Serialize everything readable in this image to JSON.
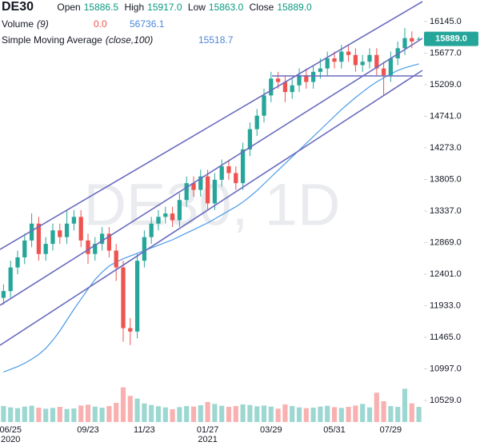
{
  "chart_data": {
    "type": "candlestick",
    "title": "DE30",
    "watermark": "DE30, 1D",
    "header": {
      "open_label": "Open",
      "open": "15886.5",
      "high_label": "High",
      "high": "15917.0",
      "low_label": "Low",
      "low": "15863.0",
      "close_label": "Close",
      "close": "15889.0"
    },
    "price_tag": "15889.0",
    "categories": [
      null,
      "06/25",
      null,
      null,
      null,
      null,
      null,
      null,
      null,
      null,
      null,
      null,
      "09/23",
      null,
      null,
      null,
      null,
      null,
      null,
      null,
      "11/23",
      null,
      null,
      null,
      null,
      null,
      null,
      null,
      null,
      "01/27",
      null,
      null,
      null,
      null,
      null,
      null,
      null,
      null,
      "03/29",
      null,
      null,
      null,
      null,
      null,
      null,
      null,
      null,
      "05/31",
      null,
      null,
      null,
      null,
      null,
      null,
      null,
      "07/29",
      null,
      null,
      null,
      null
    ],
    "category_years": [
      null,
      "2020",
      null,
      null,
      null,
      null,
      null,
      null,
      null,
      null,
      null,
      null,
      null,
      null,
      null,
      null,
      null,
      null,
      null,
      null,
      null,
      null,
      null,
      null,
      null,
      null,
      null,
      null,
      null,
      "2021",
      null,
      null,
      null,
      null,
      null,
      null,
      null,
      null,
      null,
      null,
      null,
      null,
      null,
      null,
      null,
      null,
      null,
      null,
      null,
      null,
      null,
      null,
      null,
      null,
      null,
      null,
      null,
      null,
      null,
      null
    ],
    "open": [
      12050,
      12150,
      12500,
      12650,
      12900,
      13150,
      12700,
      12850,
      13050,
      12950,
      13150,
      13250,
      12900,
      12700,
      12850,
      13000,
      12750,
      12500,
      11600,
      11550,
      12600,
      12950,
      13150,
      13250,
      13300,
      13200,
      13500,
      13750,
      13650,
      13850,
      13450,
      13800,
      14000,
      13900,
      13750,
      14250,
      14550,
      14750,
      15050,
      15300,
      15250,
      15100,
      15200,
      15350,
      15250,
      15400,
      15450,
      15600,
      15550,
      15700,
      15650,
      15500,
      15550,
      15650,
      15450,
      15350,
      15600,
      15750,
      15900,
      15886.5
    ],
    "high": [
      12250,
      12600,
      12750,
      13000,
      13300,
      13250,
      12950,
      13150,
      13150,
      13350,
      13350,
      13350,
      13000,
      12950,
      13100,
      13100,
      12850,
      12600,
      11750,
      12700,
      13050,
      13250,
      13350,
      13400,
      13400,
      13600,
      13850,
      13850,
      13950,
      13950,
      13900,
      14100,
      14100,
      14000,
      14350,
      14650,
      14850,
      15150,
      15400,
      15400,
      15350,
      15300,
      15450,
      15450,
      15500,
      15600,
      15700,
      15700,
      15800,
      15800,
      15750,
      15650,
      15750,
      15750,
      15550,
      15700,
      15850,
      16050,
      16000,
      15917
    ],
    "low": [
      11950,
      12050,
      12400,
      12550,
      12800,
      12600,
      12600,
      12750,
      12850,
      12850,
      13050,
      12800,
      12550,
      12600,
      12750,
      12650,
      12300,
      11400,
      11350,
      11450,
      12500,
      12850,
      13050,
      13150,
      13100,
      13100,
      13400,
      13550,
      13550,
      13350,
      13350,
      13700,
      13800,
      13650,
      13650,
      14150,
      14450,
      14650,
      14950,
      15150,
      14950,
      15000,
      15100,
      15150,
      15150,
      15300,
      15350,
      15450,
      15450,
      15550,
      15400,
      15400,
      15450,
      15350,
      15050,
      15250,
      15500,
      15650,
      15750,
      15863
    ],
    "close": [
      12150,
      12500,
      12650,
      12900,
      13150,
      12700,
      12850,
      13050,
      12950,
      13150,
      13250,
      12900,
      12700,
      12850,
      13000,
      12750,
      12500,
      11600,
      11550,
      12600,
      12950,
      13150,
      13250,
      13300,
      13200,
      13500,
      13750,
      13650,
      13850,
      13450,
      13800,
      14000,
      13900,
      13750,
      14250,
      14550,
      14750,
      15050,
      15300,
      15250,
      15100,
      15200,
      15350,
      15250,
      15400,
      15450,
      15600,
      15550,
      15700,
      15650,
      15500,
      15550,
      15650,
      15450,
      15350,
      15600,
      15750,
      15900,
      15850,
      15889
    ],
    "up_color": "#26a69a",
    "down_color": "#ef5350",
    "volume": {
      "label": "Volume",
      "param": "(9)",
      "ma_value": "0.0",
      "value": "56736.1",
      "values": [
        60000,
        55000,
        52000,
        58000,
        61000,
        54000,
        50000,
        53000,
        57000,
        49000,
        51000,
        62000,
        65000,
        58000,
        54000,
        60000,
        72000,
        130000,
        98000,
        88000,
        70000,
        64000,
        59000,
        55000,
        48000,
        56000,
        60000,
        58000,
        63000,
        75000,
        68000,
        61000,
        57000,
        60000,
        66000,
        64000,
        59000,
        62000,
        58000,
        50000,
        66000,
        60000,
        55000,
        52000,
        54000,
        58000,
        61000,
        56000,
        53000,
        57000,
        62000,
        68000,
        55000,
        110000,
        78000,
        60000,
        57000,
        125000,
        70000,
        56736.1
      ],
      "ylim": [
        0,
        150000
      ]
    },
    "sma": {
      "label": "Simple Moving Average",
      "param": "(close,100)",
      "value": "15518.7",
      "color": "#4a9be8",
      "values": [
        10950,
        10990,
        11030,
        11080,
        11140,
        11210,
        11300,
        11420,
        11560,
        11720,
        11880,
        12030,
        12180,
        12320,
        12430,
        12520,
        12580,
        12630,
        12670,
        12710,
        12750,
        12790,
        12830,
        12870,
        12910,
        12960,
        13010,
        13060,
        13110,
        13160,
        13220,
        13280,
        13340,
        13400,
        13470,
        13550,
        13640,
        13740,
        13840,
        13940,
        14040,
        14140,
        14240,
        14340,
        14440,
        14540,
        14640,
        14740,
        14840,
        14930,
        15020,
        15100,
        15180,
        15250,
        15310,
        15370,
        15420,
        15460,
        15490,
        15518.7
      ]
    },
    "ylim": [
      10185,
      16465
    ],
    "yticks": [
      {
        "value": 10529,
        "label": "10529.0"
      },
      {
        "value": 10997,
        "label": "10997.0"
      },
      {
        "value": 11465,
        "label": "11465.0"
      },
      {
        "value": 11933,
        "label": "11933.0"
      },
      {
        "value": 12401,
        "label": "12401.0"
      },
      {
        "value": 12869,
        "label": "12869.0"
      },
      {
        "value": 13337,
        "label": "13337.0"
      },
      {
        "value": 13805,
        "label": "13805.0"
      },
      {
        "value": 14273,
        "label": "14273.0"
      },
      {
        "value": 14741,
        "label": "14741.0"
      },
      {
        "value": 15209,
        "label": "15209.0"
      },
      {
        "value": 15677,
        "label": "15677.0"
      },
      {
        "value": 16145,
        "label": "16145.0"
      }
    ]
  }
}
